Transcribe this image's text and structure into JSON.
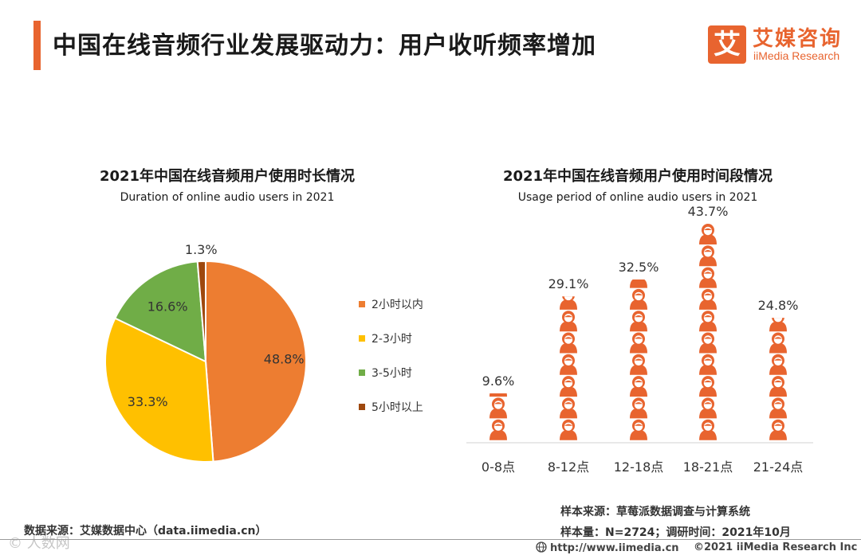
{
  "header": {
    "title": "中国在线音频行业发展驱动力：用户收听频率增加",
    "logo_mark": "艾",
    "logo_cn": "艾媒咨询",
    "logo_en": "iiMedia Research"
  },
  "colors": {
    "accent": "#e8642f",
    "pie": [
      "#ed7d31",
      "#ffc000",
      "#70ad47",
      "#9e480e"
    ],
    "bar_icon": "#e8642f"
  },
  "chart_data": [
    {
      "type": "pie",
      "title": "2021年中国在线音频用户使用时长情况",
      "subtitle": "Duration of online audio users in 2021",
      "labels": [
        "2小时以内",
        "2-3小时",
        "3-5小时",
        "5小时以上"
      ],
      "values": [
        48.8,
        33.3,
        16.6,
        1.3
      ],
      "value_labels": [
        "48.8%",
        "33.3%",
        "16.6%",
        "1.3%"
      ],
      "legend_position": "right"
    },
    {
      "type": "bar",
      "title": "2021年中国在线音频用户使用时间段情况",
      "subtitle": "Usage period of online audio users in 2021",
      "categories": [
        "0-8点",
        "8-12点",
        "12-18点",
        "18-21点",
        "21-24点"
      ],
      "values": [
        9.6,
        29.1,
        32.5,
        43.7,
        24.8
      ],
      "value_labels": [
        "9.6%",
        "29.1%",
        "32.5%",
        "43.7%",
        "24.8%"
      ],
      "ylim": [
        0,
        45
      ],
      "unit_per_icon": 4.37,
      "style": "pictograph"
    }
  ],
  "sources": {
    "data_source": "数据来源：艾媒数据中心（data.iimedia.cn）",
    "sample_source": "样本来源：草莓派数据调查与计算系统",
    "sample_size": "样本量：N=2724；调研时间：2021年10月"
  },
  "footer": {
    "url": "http://www.iimedia.cn",
    "copyright": "©2021  iiMedia Research  Inc",
    "watermark": "© 人数网"
  }
}
